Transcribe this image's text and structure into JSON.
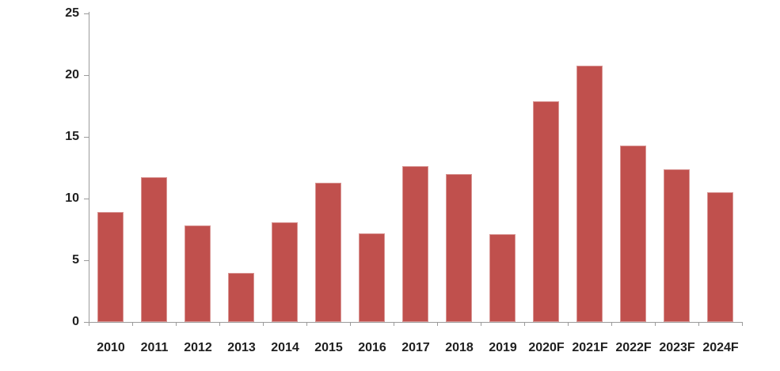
{
  "chart_data": {
    "type": "bar",
    "title": "",
    "xlabel": "",
    "ylabel": "",
    "categories": [
      "2010",
      "2011",
      "2012",
      "2013",
      "2014",
      "2015",
      "2016",
      "2017",
      "2018",
      "2019",
      "2020F",
      "2021F",
      "2022F",
      "2023F",
      "2024F"
    ],
    "values": [
      8.9,
      11.7,
      7.8,
      4.0,
      8.1,
      11.3,
      7.2,
      12.6,
      12.0,
      7.1,
      17.9,
      20.8,
      14.3,
      12.4,
      10.5
    ],
    "ylim": [
      0,
      25
    ],
    "yticks": [
      0,
      5,
      10,
      15,
      20,
      25
    ],
    "grid": false,
    "legend_position": "none",
    "bar_color": "#C0504D",
    "axis_color": "#9B9B9B",
    "label_color": "#1F1F1F",
    "background_color": "#FFFFFF"
  }
}
